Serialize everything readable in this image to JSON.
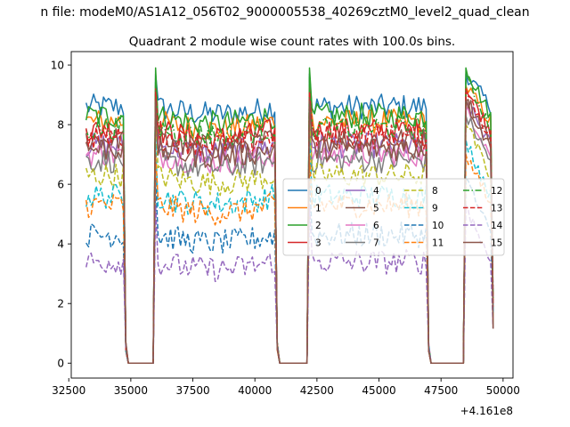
{
  "figure": {
    "suptitle": "n file: modeM0/AS1A12_056T02_9000005538_40269cztM0_level2_quad_clean",
    "offset_label": "+4.161e8"
  },
  "chart_data": {
    "type": "line",
    "title": "Quadrant 2 module wise count rates with 100.0s bins.",
    "xlabel": "",
    "ylabel": "",
    "x_offset": 416100000,
    "xlim": [
      32600,
      50400
    ],
    "ylim": [
      -0.5,
      10.45
    ],
    "xticks": [
      32500,
      35000,
      37500,
      40000,
      42500,
      45000,
      47500,
      50000
    ],
    "xtick_labels": [
      "32500",
      "35000",
      "37500",
      "40000",
      "42500",
      "45000",
      "47500",
      "50000"
    ],
    "yticks": [
      0,
      2,
      4,
      6,
      8,
      10
    ],
    "ytick_labels": [
      "0",
      "2",
      "4",
      "6",
      "8",
      "10"
    ],
    "grid": false,
    "legend_position": "center-right",
    "legend_ncol": 4,
    "bin_size_s": 100,
    "segments": [
      {
        "start": 33200,
        "end": 34700
      },
      {
        "start": 36000,
        "end": 40800
      },
      {
        "start": 42200,
        "end": 46900
      },
      {
        "start": 48500,
        "end": 49600
      }
    ],
    "gaps": [
      {
        "start": 34800,
        "end": 35900
      },
      {
        "start": 40900,
        "end": 42100
      },
      {
        "start": 47000,
        "end": 48400
      }
    ],
    "series": [
      {
        "name": "0",
        "level": 8.6,
        "peak": 9.7,
        "dash": "solid",
        "color": "#1f77b4"
      },
      {
        "name": "1",
        "level": 8.1,
        "peak": 9.3,
        "dash": "solid",
        "color": "#ff7f0e"
      },
      {
        "name": "2",
        "level": 8.3,
        "peak": 9.9,
        "dash": "solid",
        "color": "#2ca02c"
      },
      {
        "name": "3",
        "level": 7.8,
        "peak": 9.2,
        "dash": "solid",
        "color": "#d62728"
      },
      {
        "name": "4",
        "level": 7.3,
        "peak": 8.8,
        "dash": "solid",
        "color": "#9467bd"
      },
      {
        "name": "5",
        "level": 7.5,
        "peak": 8.9,
        "dash": "solid",
        "color": "#8c564b"
      },
      {
        "name": "6",
        "level": 7.0,
        "peak": 8.6,
        "dash": "solid",
        "color": "#e377c2"
      },
      {
        "name": "7",
        "level": 6.8,
        "peak": 8.3,
        "dash": "solid",
        "color": "#7f7f7f"
      },
      {
        "name": "8",
        "level": 6.3,
        "peak": 8.0,
        "dash": "dashed",
        "color": "#bcbd22"
      },
      {
        "name": "9",
        "level": 5.6,
        "peak": 7.5,
        "dash": "dashed",
        "color": "#17becf"
      },
      {
        "name": "10",
        "level": 4.3,
        "peak": 6.2,
        "dash": "dashed",
        "color": "#1f77b4"
      },
      {
        "name": "11",
        "level": 5.3,
        "peak": 7.0,
        "dash": "dashed",
        "color": "#ff7f0e"
      },
      {
        "name": "12",
        "level": 7.9,
        "peak": 9.6,
        "dash": "dashdot",
        "color": "#2ca02c"
      },
      {
        "name": "13",
        "level": 7.6,
        "peak": 9.1,
        "dash": "dashed",
        "color": "#d62728"
      },
      {
        "name": "14",
        "level": 3.4,
        "peak": 5.3,
        "dash": "dashed",
        "color": "#9467bd"
      },
      {
        "name": "15",
        "level": 7.2,
        "peak": 8.8,
        "dash": "solid",
        "color": "#8c564b"
      }
    ]
  }
}
